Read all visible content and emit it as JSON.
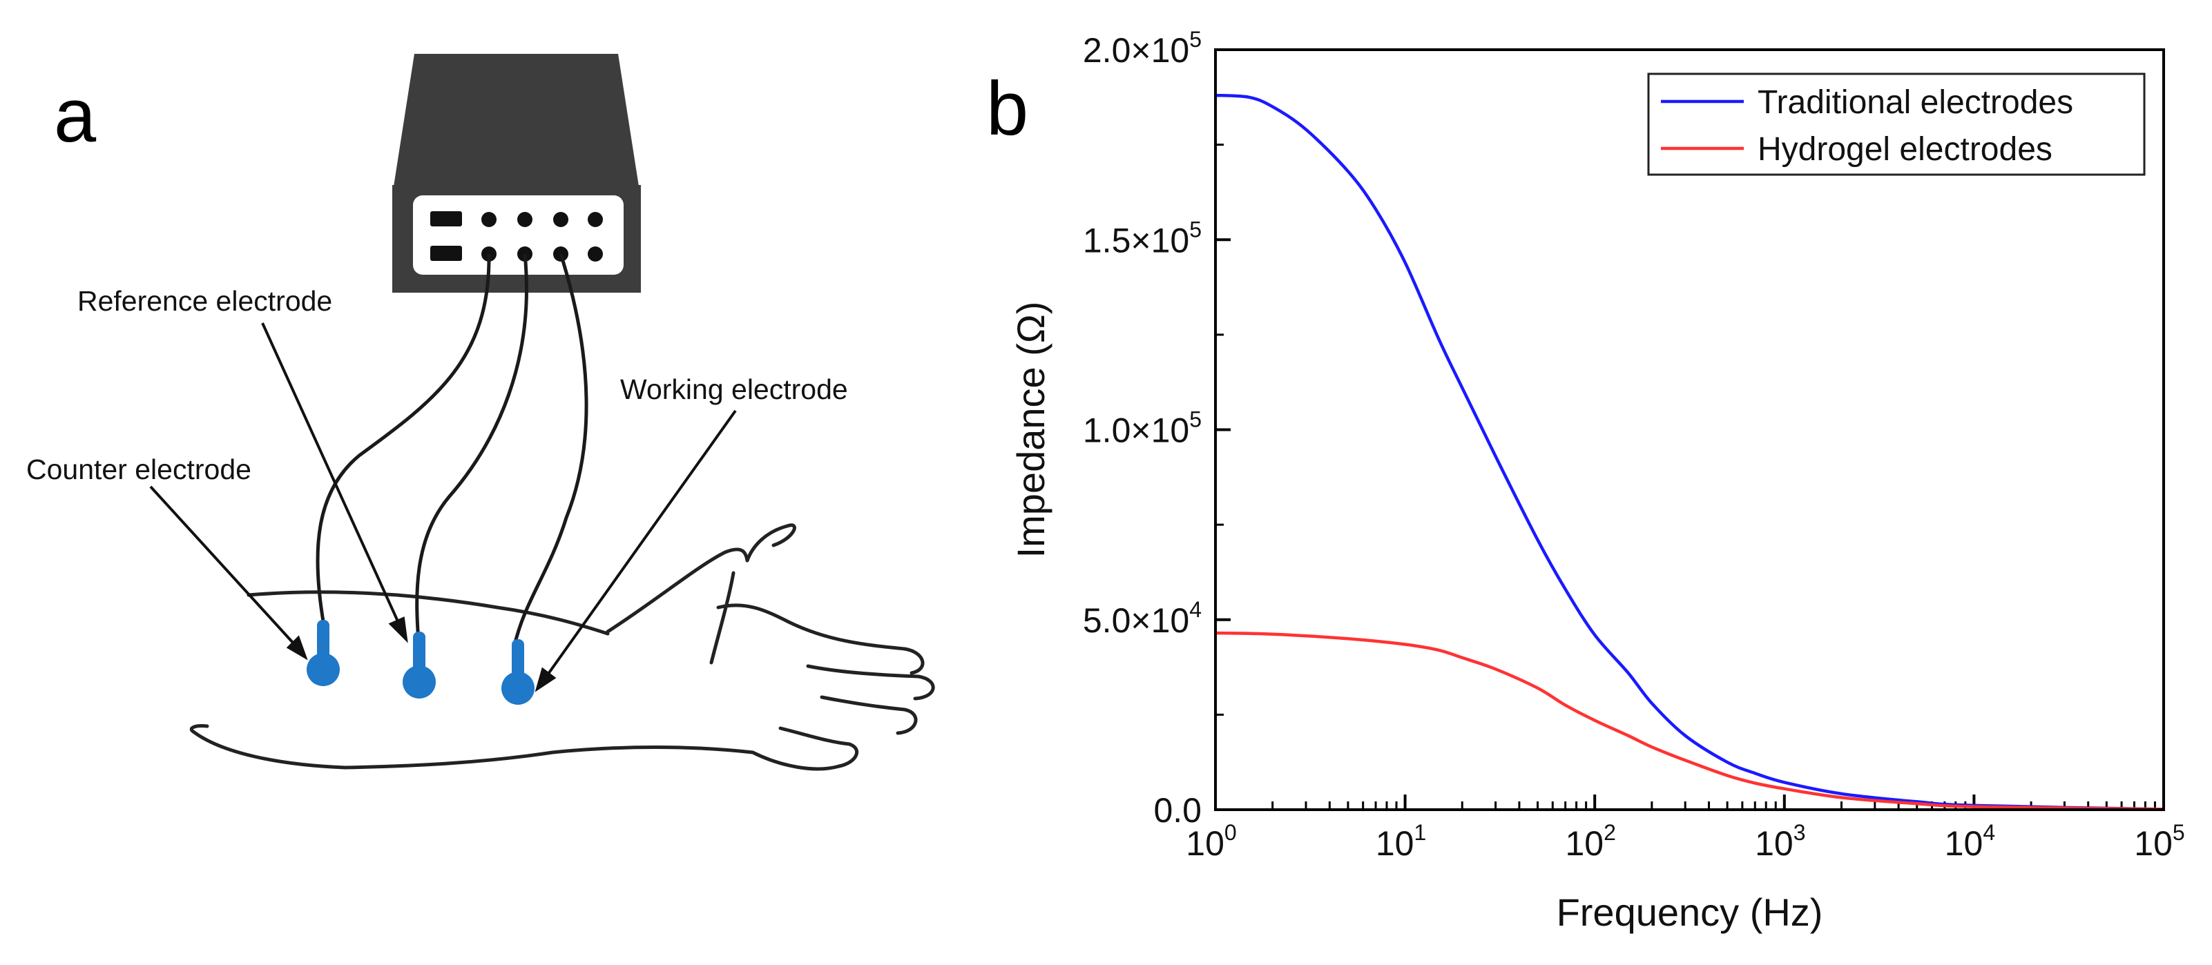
{
  "panel_a": {
    "letter": "a",
    "labels": {
      "reference": "Reference electrode",
      "working": "Working electrode",
      "counter": "Counter electrode"
    },
    "colors": {
      "device": "#3d3d3d",
      "electrode": "#1f78c8",
      "wire": "#1a1a1a",
      "arm": "#222222"
    }
  },
  "panel_b": {
    "letter": "b"
  },
  "chart_data": {
    "type": "line",
    "title": "",
    "xlabel": "Frequency (Hz)",
    "ylabel": "Impedance (Ω)",
    "xscale": "log",
    "xlim": [
      1,
      100000
    ],
    "ylim": [
      0,
      200000
    ],
    "xticks": [
      {
        "value": 1,
        "base": "10",
        "exp": "0"
      },
      {
        "value": 10,
        "base": "10",
        "exp": "1"
      },
      {
        "value": 100,
        "base": "10",
        "exp": "2"
      },
      {
        "value": 1000,
        "base": "10",
        "exp": "3"
      },
      {
        "value": 10000,
        "base": "10",
        "exp": "4"
      },
      {
        "value": 100000,
        "base": "10",
        "exp": "5"
      }
    ],
    "yticks": [
      {
        "value": 0,
        "text": "0.0",
        "exp": ""
      },
      {
        "value": 50000,
        "text": "5.0×10",
        "exp": "4"
      },
      {
        "value": 100000,
        "text": "1.0×10",
        "exp": "5"
      },
      {
        "value": 150000,
        "text": "1.5×10",
        "exp": "5"
      },
      {
        "value": 200000,
        "text": "2.0×10",
        "exp": "5"
      }
    ],
    "legend_position": "top-right",
    "grid": false,
    "series": [
      {
        "name": "Traditional electrodes",
        "color": "#1a1aff",
        "x": [
          1,
          1.5,
          2,
          3,
          5,
          7,
          10,
          15,
          20,
          30,
          50,
          70,
          100,
          150,
          200,
          300,
          500,
          700,
          1000,
          2000,
          5000,
          10000,
          100000
        ],
        "y": [
          188000,
          187500,
          185000,
          179000,
          168000,
          158000,
          144000,
          124000,
          111000,
          93000,
          71000,
          58000,
          46000,
          36000,
          28000,
          19500,
          12500,
          9600,
          7200,
          4200,
          2100,
          1100,
          100
        ]
      },
      {
        "name": "Hydrogel electrodes",
        "color": "#ff3333",
        "x": [
          1,
          2,
          5,
          10,
          15,
          20,
          30,
          50,
          70,
          100,
          150,
          200,
          300,
          500,
          700,
          1000,
          2000,
          5000,
          10000,
          100000
        ],
        "y": [
          46500,
          46200,
          45000,
          43500,
          42000,
          40000,
          37000,
          32000,
          27500,
          23500,
          19500,
          16500,
          13000,
          9000,
          7000,
          5500,
          3200,
          1600,
          800,
          100
        ]
      }
    ]
  }
}
